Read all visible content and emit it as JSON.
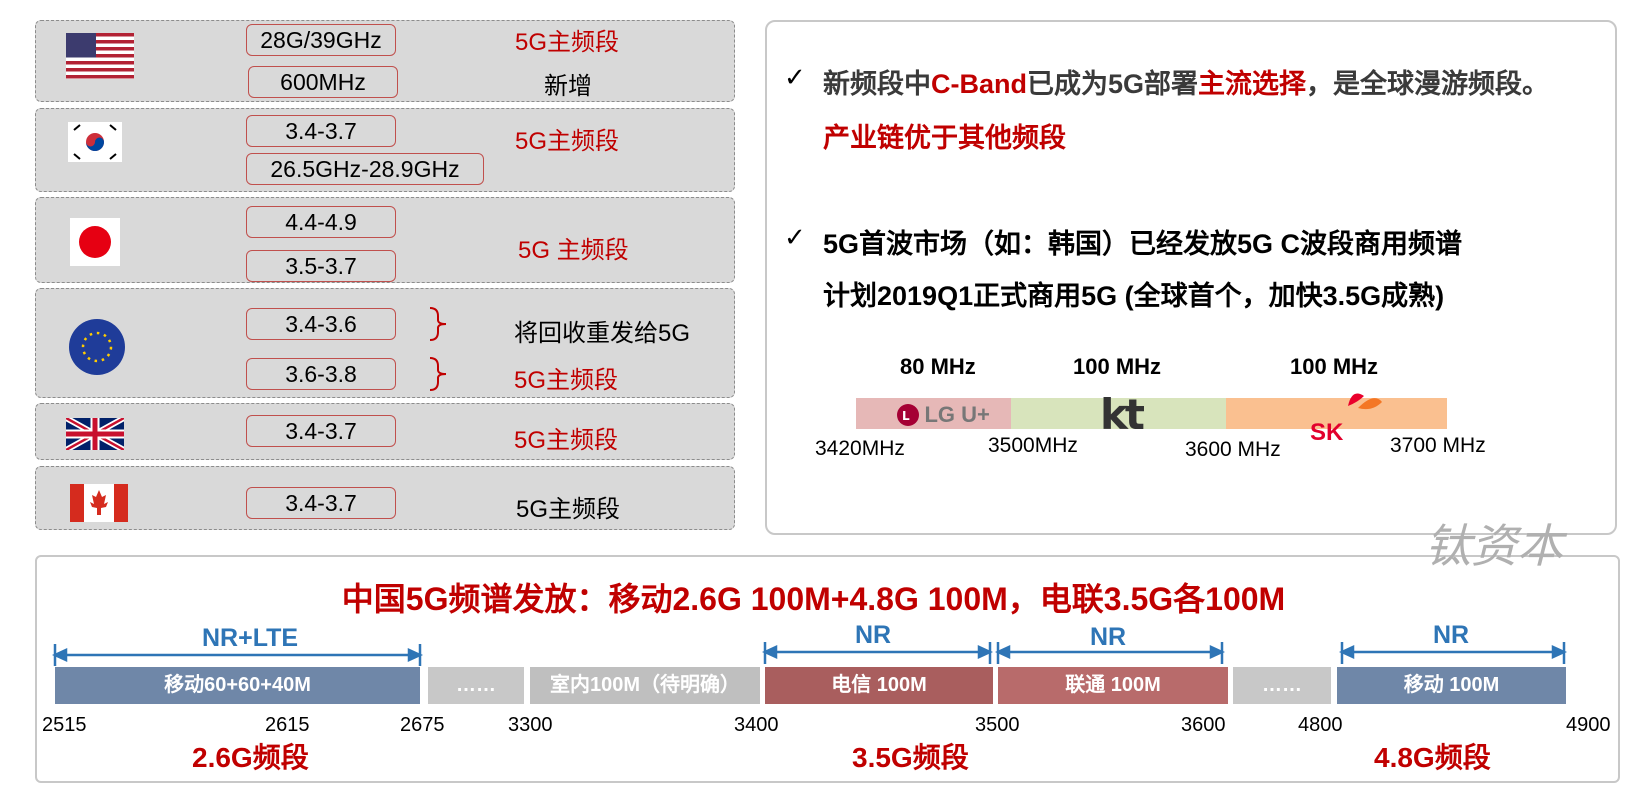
{
  "countries": [
    {
      "flag_icon": "us-flag-icon",
      "bands": [
        "28G/39GHz",
        "600MHz"
      ],
      "notes": [
        "5G主频段",
        "新增"
      ]
    },
    {
      "flag_icon": "korea-flag-icon",
      "bands": [
        "3.4-3.7",
        "26.5GHz-28.9GHz"
      ],
      "notes": [
        "5G主频段"
      ]
    },
    {
      "flag_icon": "japan-flag-icon",
      "bands": [
        "4.4-4.9",
        "3.5-3.7"
      ],
      "notes": [
        "5G 主频段"
      ]
    },
    {
      "flag_icon": "eu-flag-icon",
      "bands": [
        "3.4-3.6",
        "3.6-3.8"
      ],
      "notes": [
        "将回收重发给5G",
        "5G主频段"
      ]
    },
    {
      "flag_icon": "uk-flag-icon",
      "bands": [
        "3.4-3.7"
      ],
      "notes": [
        "5G主频段"
      ]
    },
    {
      "flag_icon": "canada-flag-icon",
      "bands": [
        "3.4-3.7"
      ],
      "notes": [
        "5G主频段"
      ]
    }
  ],
  "panel": {
    "check_mark": "✓",
    "point1": {
      "a": "新频段中",
      "b": "C-Band",
      "c": "已成为5G部署",
      "d": "主流选择",
      "e": "，是全球漫游频段。",
      "line2": "产业链优于其他频段"
    },
    "point2": {
      "line1": "5G首波市场（如：韩国）已经发放5G C波段商用频谱",
      "line2": "计划2019Q1正式商用5G (全球首个，加快3.5G成熟)"
    },
    "korea_alloc": {
      "widths": [
        "80 MHz",
        "100 MHz",
        "100 MHz"
      ],
      "operators": [
        "LG U+",
        "kt",
        "SK"
      ],
      "ticks": [
        "3420MHz",
        "3500MHz",
        "3600 MHz",
        "3700 MHz"
      ],
      "colors": [
        "#e6b8b7",
        "#d8e4bc",
        "#fac090"
      ]
    }
  },
  "china": {
    "title": "中国5G频谱发放：移动2.6G 100M+4.8G 100M，电联3.5G各100M",
    "tech_labels": [
      "NR+LTE",
      "NR",
      "NR",
      "NR"
    ],
    "segments": [
      "移动60+60+40M",
      "……",
      "室内100M（待明确）",
      "电信 100M",
      "联通 100M",
      "……",
      "移动 100M"
    ],
    "segment_colors": [
      "#6f87a8",
      "#c8c8c8",
      "#bfbfbf",
      "#a95e5e",
      "#b86b6b",
      "#c8c8c8",
      "#6f87a8"
    ],
    "ticks": [
      "2515",
      "2615",
      "2675",
      "3300",
      "3400",
      "3500",
      "3600",
      "4800",
      "4900"
    ],
    "bands": [
      "2.6G频段",
      "3.5G频段",
      "4.8G频段"
    ]
  },
  "watermark": "钛资本"
}
